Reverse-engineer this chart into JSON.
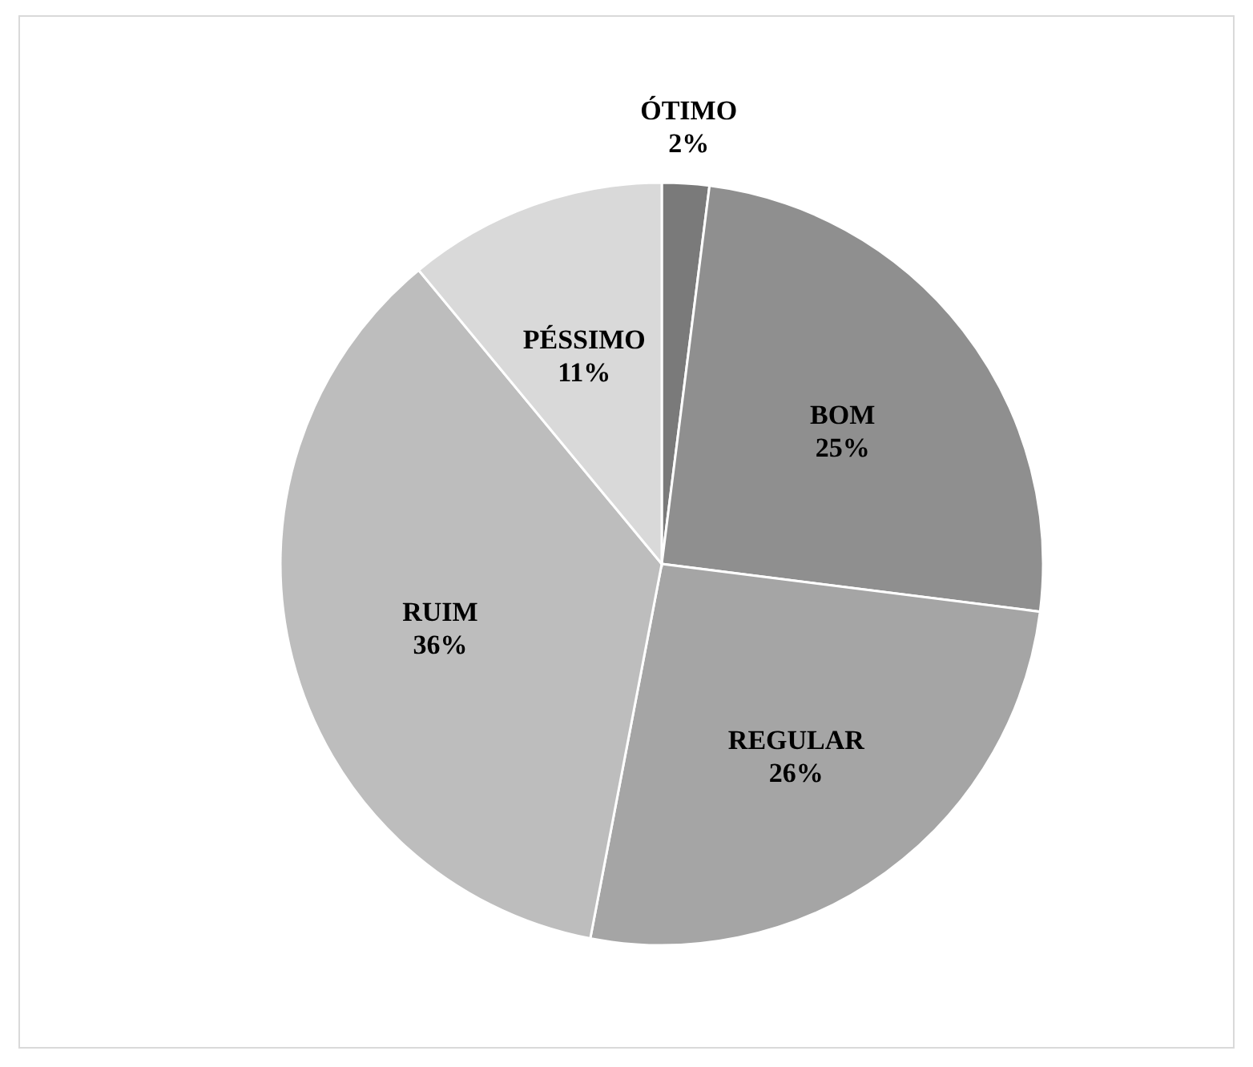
{
  "chart_data": {
    "type": "pie",
    "categories": [
      "ÓTIMO",
      "BOM",
      "REGULAR",
      "RUIM",
      "PÉSSIMO"
    ],
    "values": [
      2,
      25,
      26,
      36,
      11
    ],
    "colors": [
      "#7a7a7a",
      "#8f8f8f",
      "#a5a5a5",
      "#bdbdbd",
      "#d9d9d9"
    ],
    "value_labels": [
      "2%",
      "25%",
      "26%",
      "36%",
      "11%"
    ]
  }
}
